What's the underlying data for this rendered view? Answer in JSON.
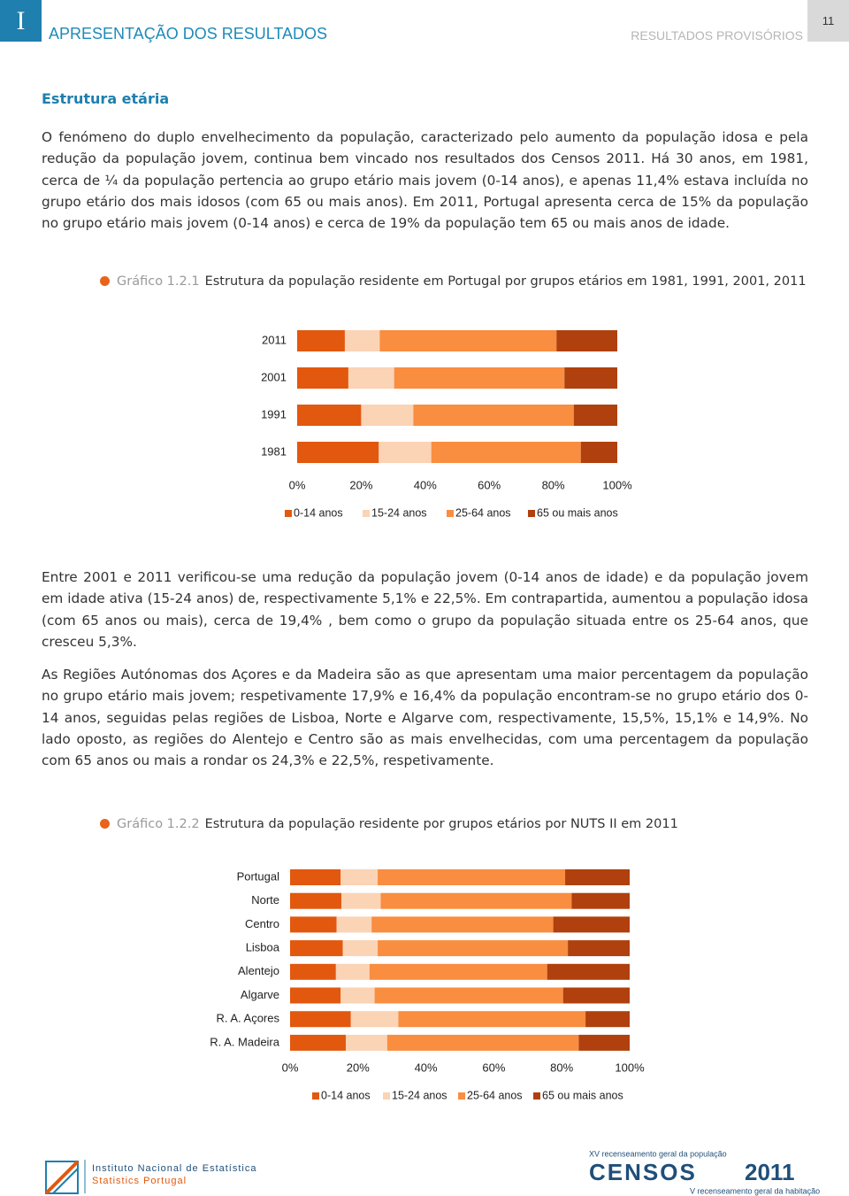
{
  "header": {
    "section": "I",
    "title": "APRESENTAÇÃO DOS RESULTADOS",
    "right": "RESULTADOS PROVISÓRIOS",
    "page": "11"
  },
  "section_title": "Estrutura etária",
  "paragraphs": [
    "O fenómeno do duplo envelhecimento da população, caracterizado pelo aumento da população idosa e pela redução da população jovem, continua bem vincado nos resultados dos Censos 2011. Há 30 anos, em 1981, cerca de ¼ da população pertencia ao grupo etário mais jovem (0-14 anos), e apenas 11,4% estava incluída no grupo etário dos mais idosos (com 65 ou mais anos). Em 2011, Portugal apresenta cerca de 15% da população no grupo etário mais jovem (0-14 anos) e cerca de 19% da população tem 65 ou mais anos de idade.",
    "Entre 2001 e 2011 verificou-se uma redução da população jovem (0-14 anos de idade) e da população jovem em idade ativa (15-24 anos) de, respectivamente 5,1% e 22,5%. Em contrapartida, aumentou a população idosa (com 65 anos ou mais), cerca de 19,4% , bem como o grupo da população situada entre os 25-64 anos, que cresceu 5,3%.",
    "As Regiões Autónomas dos Açores e da Madeira são as que apresentam uma maior percentagem da população no grupo etário mais jovem; respetivamente 17,9% e 16,4% da população encontram-se no grupo etário dos 0-14 anos, seguidas pelas regiões de Lisboa, Norte e Algarve com, respectivamente, 15,5%, 15,1% e 14,9%. No lado oposto, as regiões do Alentejo e Centro são as mais envelhecidas, com uma percentagem da população com 65 anos ou mais a rondar os 24,3% e 22,5%, respetivamente."
  ],
  "chart_data": [
    {
      "type": "bar",
      "orientation": "horizontal",
      "stacked": true,
      "label": "Gráfico 1.2.1",
      "title": "Estrutura da população residente em Portugal por grupos etários em 1981, 1991, 2001, 2011",
      "categories": [
        "2011",
        "2001",
        "1991",
        "1981"
      ],
      "series": [
        {
          "name": "0-14 anos",
          "color": "#e2580e",
          "values": [
            14.9,
            16.0,
            20.0,
            25.5
          ]
        },
        {
          "name": "15-24 anos",
          "color": "#fbd3b5",
          "values": [
            10.9,
            14.3,
            16.3,
            16.4
          ]
        },
        {
          "name": "25-64 anos",
          "color": "#f98d40",
          "values": [
            55.2,
            53.2,
            50.1,
            46.7
          ]
        },
        {
          "name": "65 ou mais anos",
          "color": "#b0400d",
          "values": [
            19.0,
            16.5,
            13.6,
            11.4
          ]
        }
      ],
      "xlim": [
        0,
        100
      ],
      "xticks": [
        {
          "value": 0,
          "label": "0%"
        },
        {
          "value": 20,
          "label": "20%"
        },
        {
          "value": 40,
          "label": "40%"
        },
        {
          "value": 60,
          "label": "60%"
        },
        {
          "value": 80,
          "label": "80%"
        },
        {
          "value": 100,
          "label": "100%"
        }
      ],
      "grid": false,
      "legend": "bottom"
    },
    {
      "type": "bar",
      "orientation": "horizontal",
      "stacked": true,
      "label": "Gráfico 1.2.2",
      "title": "Estrutura da população residente por grupos etários por NUTS II em 2011",
      "categories": [
        "Portugal",
        "Norte",
        "Centro",
        "Lisboa",
        "Alentejo",
        "Algarve",
        "R. A. Açores",
        "R. A. Madeira"
      ],
      "series": [
        {
          "name": "0-14 anos",
          "color": "#e2580e",
          "values": [
            14.9,
            15.1,
            13.7,
            15.5,
            13.5,
            14.9,
            17.9,
            16.4
          ]
        },
        {
          "name": "15-24 anos",
          "color": "#fbd3b5",
          "values": [
            10.9,
            11.6,
            10.3,
            10.3,
            9.9,
            10.0,
            14.0,
            12.2
          ]
        },
        {
          "name": "25-64 anos",
          "color": "#f98d40",
          "values": [
            55.2,
            56.2,
            53.5,
            56.0,
            52.3,
            55.5,
            55.1,
            56.4
          ]
        },
        {
          "name": "65 ou mais anos",
          "color": "#b0400d",
          "values": [
            19.0,
            17.1,
            22.5,
            18.2,
            24.3,
            19.6,
            13.0,
            15.0
          ]
        }
      ],
      "xlim": [
        0,
        100
      ],
      "xticks": [
        {
          "value": 0,
          "label": "0%"
        },
        {
          "value": 20,
          "label": "20%"
        },
        {
          "value": 40,
          "label": "40%"
        },
        {
          "value": 60,
          "label": "60%"
        },
        {
          "value": 80,
          "label": "80%"
        },
        {
          "value": 100,
          "label": "100%"
        }
      ],
      "grid": false,
      "legend": "bottom"
    }
  ],
  "footer": {
    "institute": "Instituto Nacional de Estatística",
    "institute_en": "Statistics Portugal",
    "census_top": "XV recenseamento geral da população",
    "census_name": "CENSOS",
    "census_year": "2011",
    "census_bottom": "V recenseamento geral da habitação"
  }
}
